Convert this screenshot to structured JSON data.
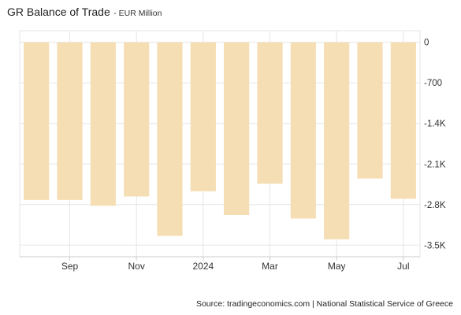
{
  "title": "GR Balance of Trade",
  "subtitle": "EUR Million",
  "source": "Source: tradingeconomics.com | National Statistical Service of Greece",
  "chart_data": {
    "type": "bar",
    "categories": [
      "2023-08",
      "2023-09",
      "2023-10",
      "2023-11",
      "2023-12",
      "2024-01",
      "2024-02",
      "2024-03",
      "2024-04",
      "2024-05",
      "2024-06",
      "2024-07"
    ],
    "values": [
      -2720,
      -2720,
      -2820,
      -2660,
      -3340,
      -2570,
      -2980,
      -2440,
      -3040,
      -3400,
      -2350,
      -2700
    ],
    "xlabel": "",
    "ylabel": "",
    "ylim": [
      -3700,
      200
    ],
    "yticks": [
      0,
      -700,
      -1400,
      -2100,
      -2800,
      -3500
    ],
    "ytick_labels": [
      "0",
      "-700",
      "-1.4K",
      "-2.1K",
      "-2.8K",
      "-3.5K"
    ],
    "xtick_labels": [
      "Sep",
      "Nov",
      "2024",
      "Mar",
      "May",
      "Jul"
    ],
    "xtick_categories": [
      "2023-09",
      "2023-11",
      "2024-01",
      "2024-03",
      "2024-05",
      "2024-07"
    ],
    "grid": true,
    "y_axis_position": "right",
    "bar_color": "#f5deb3",
    "grid_color": "#e6e6e6"
  }
}
